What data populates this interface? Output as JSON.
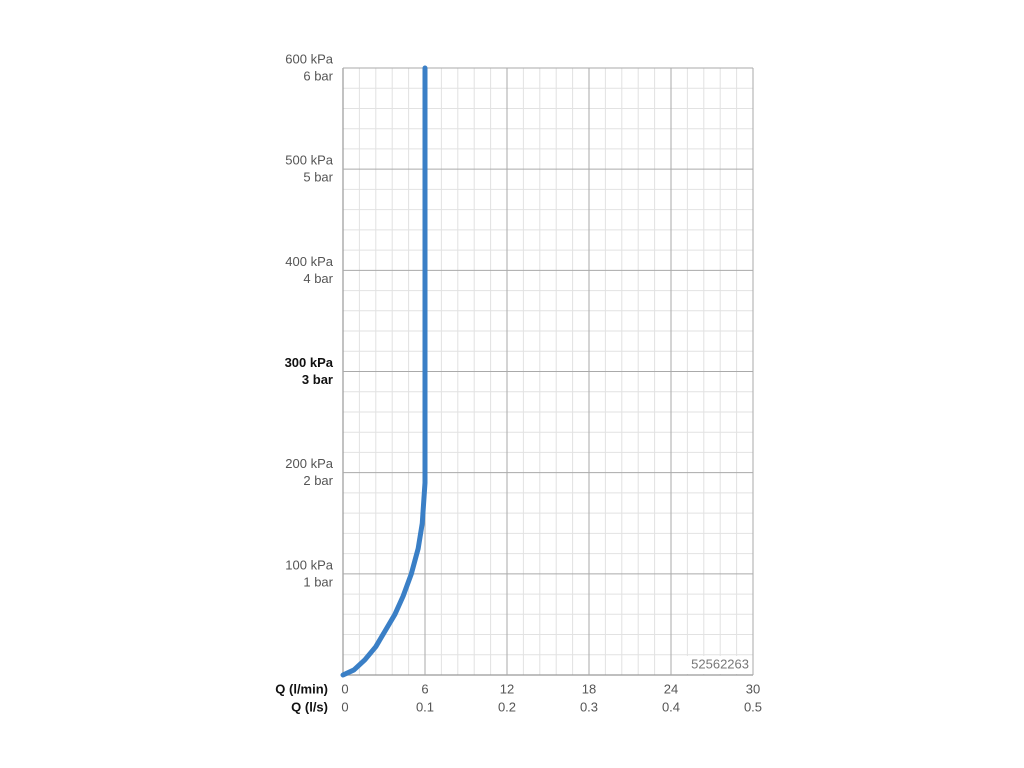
{
  "chart_data": {
    "type": "line",
    "x_label": "Q (l/min)",
    "x2_label": "Q (l/s)",
    "annotation": "52562263",
    "xlim": [
      0,
      30
    ],
    "xticks": [
      0,
      6,
      12,
      18,
      24,
      30
    ],
    "x2lim": [
      0,
      0.5
    ],
    "x2ticks": [
      0,
      0.1,
      0.2,
      0.3,
      0.4,
      0.5
    ],
    "ylim": [
      0,
      600
    ],
    "yticks": [
      {
        "value": 100,
        "label": "100 kPa"
      },
      {
        "value": 200,
        "label": "200 kPa"
      },
      {
        "value": 300,
        "label": "300 kPa"
      },
      {
        "value": 400,
        "label": "400 kPa"
      },
      {
        "value": 500,
        "label": "500 kPa"
      },
      {
        "value": 600,
        "label": "600 kPa"
      }
    ],
    "y2lim": [
      0,
      6
    ],
    "y2ticks": [
      {
        "value": 1,
        "label": "1 bar"
      },
      {
        "value": 2,
        "label": "2 bar"
      },
      {
        "value": 3,
        "label": "3 bar"
      },
      {
        "value": 4,
        "label": "4 bar"
      },
      {
        "value": 5,
        "label": "5 bar"
      },
      {
        "value": 6,
        "label": "6 bar"
      }
    ],
    "bold_ytick_value": 300,
    "grid": true,
    "minor_grid_divisions": 5,
    "series": [
      {
        "color": "#3a7fc6",
        "x": [
          0,
          0.8,
          1.6,
          2.4,
          3.1,
          3.8,
          4.4,
          5,
          5.5,
          5.8,
          6,
          6
        ],
        "values": [
          0,
          5,
          15,
          28,
          44,
          60,
          78,
          100,
          125,
          150,
          190,
          600
        ]
      }
    ]
  }
}
